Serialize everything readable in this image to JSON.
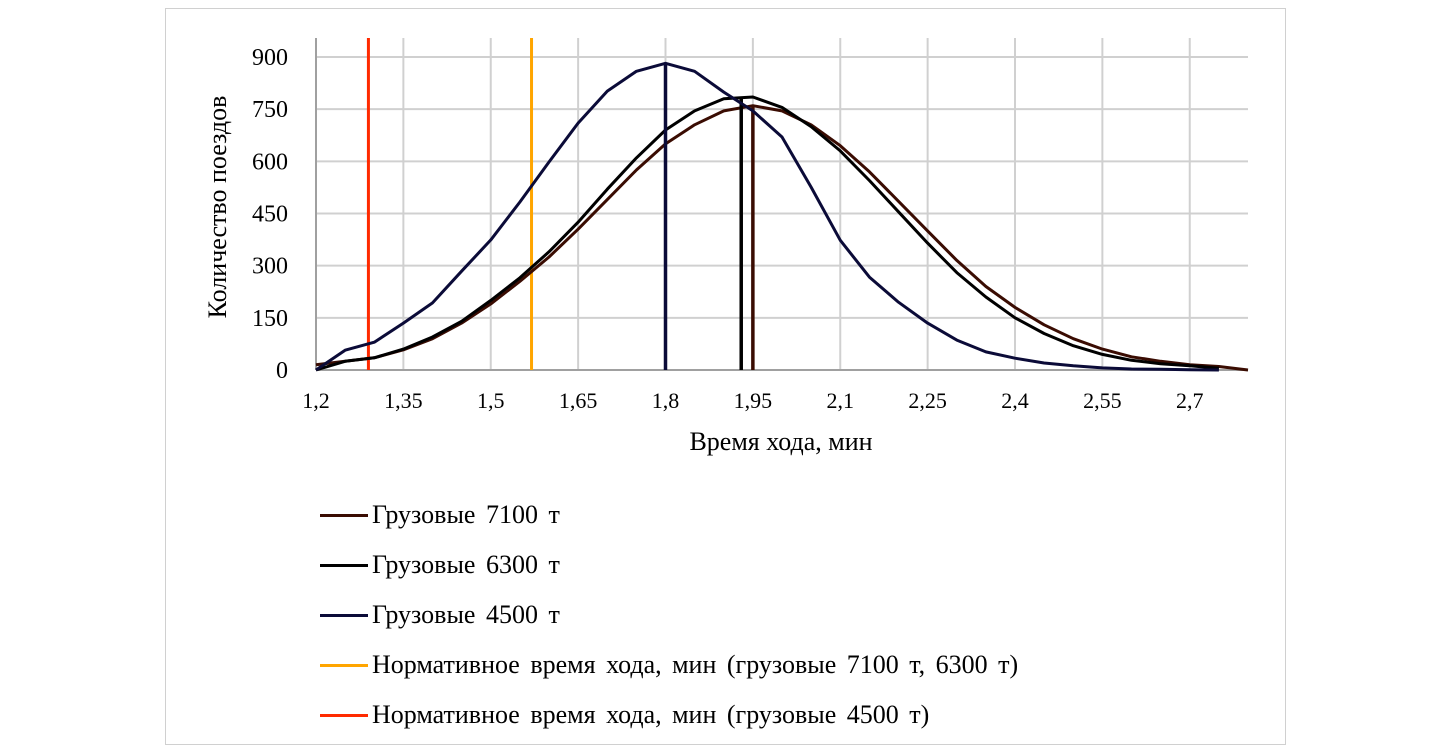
{
  "chart_data": {
    "type": "line",
    "xlabel": "Время хода, мин",
    "ylabel": "Количество поездов",
    "xlim": [
      1.2,
      2.8
    ],
    "ylim": [
      0,
      900
    ],
    "grid": true,
    "legend_position": "bottom",
    "x_ticks": [
      "1,2",
      "1,35",
      "1,5",
      "1,65",
      "1,8",
      "1,95",
      "2,1",
      "2,25",
      "2,4",
      "2,55",
      "2,7"
    ],
    "x_tick_values": [
      1.2,
      1.35,
      1.5,
      1.65,
      1.8,
      1.95,
      2.1,
      2.25,
      2.4,
      2.55,
      2.7
    ],
    "y_ticks": [
      "0",
      "150",
      "300",
      "450",
      "600",
      "750",
      "900"
    ],
    "y_tick_values": [
      0,
      150,
      300,
      450,
      600,
      750,
      900
    ],
    "series": [
      {
        "name": "Грузовые 7100 т",
        "color": "#3a0c02",
        "x": [
          1.2,
          1.25,
          1.3,
          1.35,
          1.4,
          1.45,
          1.5,
          1.55,
          1.6,
          1.65,
          1.7,
          1.75,
          1.8,
          1.85,
          1.9,
          1.95,
          2.0,
          2.05,
          2.1,
          2.15,
          2.2,
          2.25,
          2.3,
          2.35,
          2.4,
          2.45,
          2.5,
          2.55,
          2.6,
          2.65,
          2.7,
          2.75,
          2.8
        ],
        "values": [
          15,
          25,
          35,
          58,
          90,
          135,
          190,
          255,
          325,
          405,
          490,
          575,
          650,
          705,
          745,
          760,
          745,
          705,
          645,
          570,
          485,
          400,
          315,
          240,
          180,
          130,
          90,
          60,
          38,
          25,
          15,
          10,
          0
        ],
        "marker_x": 1.95,
        "marker_y": 760
      },
      {
        "name": "Грузовые 6300 т",
        "color": "#000000",
        "x": [
          1.2,
          1.25,
          1.3,
          1.35,
          1.4,
          1.45,
          1.5,
          1.55,
          1.6,
          1.65,
          1.7,
          1.75,
          1.8,
          1.85,
          1.9,
          1.95,
          2.0,
          2.05,
          2.1,
          2.15,
          2.2,
          2.25,
          2.3,
          2.35,
          2.4,
          2.45,
          2.5,
          2.55,
          2.6,
          2.65,
          2.7,
          2.75
        ],
        "values": [
          0,
          25,
          35,
          60,
          95,
          140,
          200,
          265,
          340,
          425,
          520,
          610,
          690,
          745,
          780,
          785,
          755,
          700,
          630,
          545,
          455,
          365,
          280,
          210,
          150,
          105,
          70,
          45,
          28,
          18,
          12,
          5
        ],
        "marker_x": 1.93,
        "marker_y": 782
      },
      {
        "name": "Грузовые 4500 т",
        "color": "#0b0b38",
        "x": [
          1.2,
          1.25,
          1.3,
          1.35,
          1.4,
          1.45,
          1.5,
          1.55,
          1.6,
          1.65,
          1.7,
          1.75,
          1.8,
          1.85,
          1.9,
          1.95,
          2.0,
          2.05,
          2.1,
          2.15,
          2.2,
          2.25,
          2.3,
          2.35,
          2.4,
          2.45,
          2.5,
          2.55,
          2.6,
          2.65,
          2.7,
          2.75
        ],
        "values": [
          0,
          57,
          80,
          135,
          193,
          284,
          374,
          483,
          598,
          710,
          802,
          859,
          882,
          859,
          799,
          745,
          670,
          526,
          373,
          267,
          195,
          135,
          86,
          52,
          34,
          20,
          12,
          6,
          3,
          2,
          1,
          0
        ],
        "marker_x": 1.8,
        "marker_y": 882
      },
      {
        "name": "Нормативное время хода, мин (грузовые 7100 т, 6300 т)",
        "color": "#ffa500",
        "type": "vline",
        "x_value": 1.57
      },
      {
        "name": "Нормативное время хода, мин (грузовые 4500 т)",
        "color": "#ff2a00",
        "type": "vline",
        "x_value": 1.29
      }
    ]
  }
}
